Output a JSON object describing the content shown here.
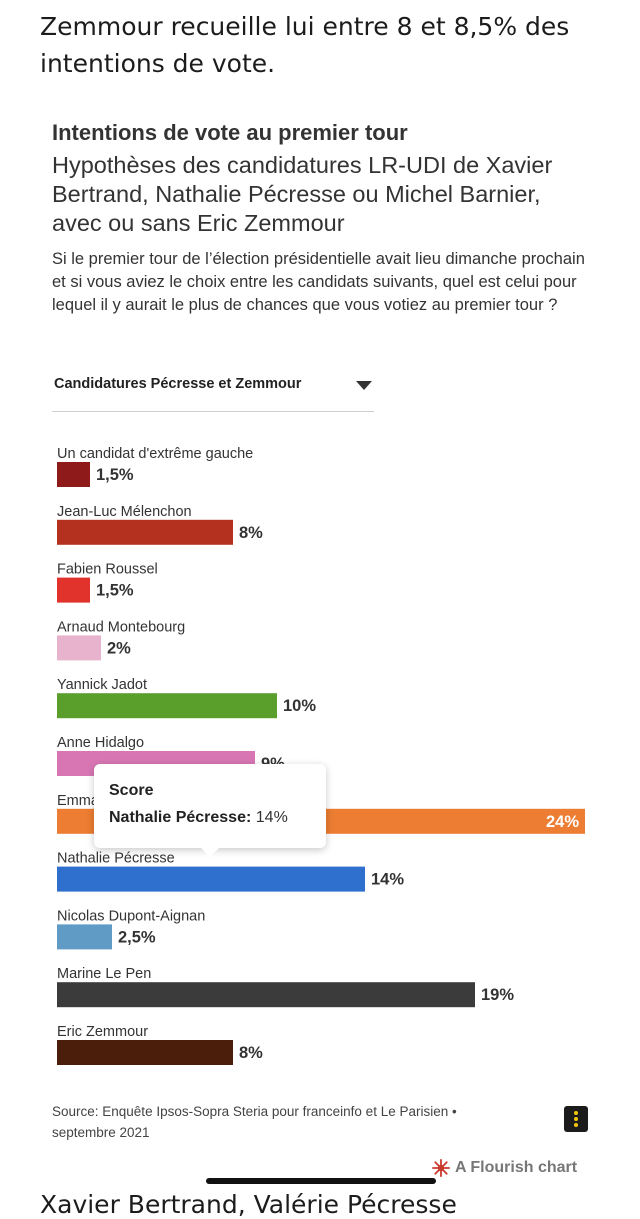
{
  "article": {
    "intro": "Zemmour recueille lui entre 8 et 8,5% des intentions de vote.",
    "next_text": "Xavier Bertrand, Valérie Pécresse"
  },
  "chart": {
    "dropdown_label": "Candidatures Pécresse et Zemmour",
    "tooltip": {
      "title": "Score",
      "name": "Nathalie Pécresse:",
      "value": "14%"
    },
    "source": "Source: Enquête Ipsos-Sopra Steria pour franceinfo et Le Parisien • septembre 2021",
    "flourish_label": "A Flourish chart"
  },
  "chart_data": {
    "type": "bar",
    "orientation": "horizontal",
    "title": "Intentions de vote au premier tour",
    "subtitle": "Hypothèses des candidatures LR-UDI de Xavier Bertrand, Nathalie Pécresse ou Michel Barnier, avec ou sans Eric Zemmour",
    "question": "Si le premier tour de l’élection présidentielle avait lieu dimanche prochain et si vous aviez le choix entre les candidats suivants, quel est celui pour lequel il y aurait le plus de chances que vous votiez au premier tour ?",
    "xlim": [
      0,
      24
    ],
    "grid": false,
    "legend": "none",
    "categories": [
      "Un candidat d'extrême gauche",
      "Jean-Luc Mélenchon",
      "Fabien Roussel",
      "Arnaud Montebourg",
      "Yannick Jadot",
      "Anne Hidalgo",
      "Emmanuel Macron",
      "Nathalie Pécresse",
      "Nicolas Dupont-Aignan",
      "Marine Le Pen",
      "Eric Zemmour"
    ],
    "values": [
      1.5,
      8,
      1.5,
      2,
      10,
      9,
      24,
      14,
      2.5,
      19,
      8
    ],
    "value_labels": [
      "1,5%",
      "8%",
      "1,5%",
      "2%",
      "10%",
      "9%",
      "24%",
      "14%",
      "2,5%",
      "19%",
      "8%"
    ],
    "colors": [
      "#8e1a1a",
      "#b5311f",
      "#e2322c",
      "#e8b3cc",
      "#5a9e2c",
      "#d876b4",
      "#ec7d33",
      "#2f6fcd",
      "#609bc6",
      "#3b3b3b",
      "#4b1e0b"
    ]
  }
}
